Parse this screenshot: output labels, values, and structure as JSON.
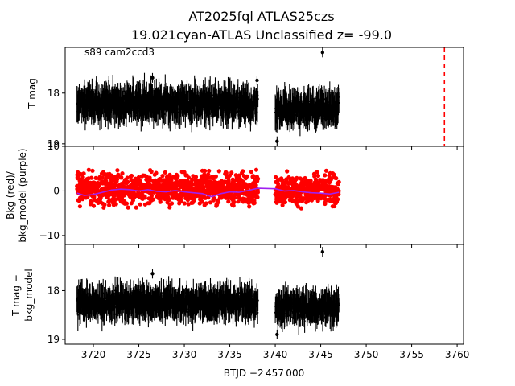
{
  "chart_data": {
    "type": "scatter",
    "title_line1": "AT2025fql  ATLAS25czs",
    "title_line2": "19.021cyan-ATLAS Unclassified z= -99.0",
    "annotation": "s89 cam2ccd3",
    "xlabel": "BTJD −2 457 000",
    "xlim": [
      3716.9,
      3760.7
    ],
    "x_ticks": [
      3720,
      3725,
      3730,
      3735,
      3740,
      3745,
      3750,
      3755,
      3760
    ],
    "x_tick_labels": [
      "3720",
      "3725",
      "3730",
      "3735",
      "3740",
      "3745",
      "3750",
      "3755",
      "3760"
    ],
    "panels": [
      {
        "id": "top",
        "ylabel": "T mag",
        "ylim": [
          19.05,
          17.1
        ],
        "inverted": true,
        "y_ticks": [
          18,
          19
        ],
        "y_tick_labels": [
          "18",
          "19"
        ],
        "series": [
          {
            "color": "#000000",
            "style": "errorbar",
            "segments": [
              {
                "x_start": 3718.2,
                "x_end": 3738.1,
                "center": 18.2,
                "spread": 0.32
              },
              {
                "x_start": 3740.0,
                "x_end": 3747.0,
                "center": 18.3,
                "spread": 0.3
              }
            ],
            "outliers": [
              {
                "x": 3745.2,
                "y": 17.2
              },
              {
                "x": 3726.5,
                "y": 17.7
              },
              {
                "x": 3738.0,
                "y": 17.75
              },
              {
                "x": 3740.2,
                "y": 18.95
              }
            ]
          }
        ],
        "vline": {
          "x": 3758.6,
          "color": "#ff0000",
          "style": "dashed"
        }
      },
      {
        "id": "middle",
        "ylabel_line1": "Bkg (red)/",
        "ylabel_line2": "bkg_model (purple)",
        "ylim": [
          -12,
          10
        ],
        "y_ticks": [
          -10,
          0,
          10
        ],
        "y_tick_labels": [
          "−10",
          "0",
          "10"
        ],
        "series": [
          {
            "name": "Bkg",
            "color": "#ff0000",
            "style": "points",
            "segments": [
              {
                "x_start": 3718.2,
                "x_end": 3738.1,
                "center": 0.5,
                "spread": 5.0
              },
              {
                "x_start": 3740.0,
                "x_end": 3747.0,
                "center": 0.2,
                "spread": 5.0
              }
            ]
          },
          {
            "name": "bkg_model",
            "color": "#a020f0",
            "style": "line",
            "x": [
              3718.2,
              3719.0,
              3720.0,
              3721.0,
              3722.0,
              3723.0,
              3724.0,
              3725.0,
              3726.0,
              3727.0,
              3728.0,
              3729.0,
              3730.0,
              3731.0,
              3732.0,
              3733.0,
              3734.0,
              3735.0,
              3736.0,
              3737.0,
              3738.1,
              3740.0,
              3741.0,
              3742.0,
              3743.0,
              3744.0,
              3745.0,
              3746.0,
              3747.0
            ],
            "y": [
              -0.5,
              -1.0,
              -0.8,
              -0.3,
              0.2,
              0.4,
              0.3,
              0.0,
              0.3,
              -0.1,
              -0.2,
              0.1,
              -0.2,
              -0.4,
              -0.6,
              -1.3,
              -0.6,
              -0.2,
              -0.3,
              0.1,
              0.6,
              0.5,
              0.0,
              0.1,
              -0.2,
              -0.4,
              -0.5,
              -0.7,
              -0.3
            ]
          }
        ]
      },
      {
        "id": "bottom",
        "ylabel_line1": "T mag −",
        "ylabel_line2": "bkg_model",
        "ylim": [
          19.1,
          17.05
        ],
        "inverted": true,
        "y_ticks": [
          18,
          19
        ],
        "y_tick_labels": [
          "18",
          "19"
        ],
        "series": [
          {
            "color": "#000000",
            "style": "errorbar",
            "segments": [
              {
                "x_start": 3718.2,
                "x_end": 3738.1,
                "center": 18.25,
                "spread": 0.3
              },
              {
                "x_start": 3740.0,
                "x_end": 3747.0,
                "center": 18.35,
                "spread": 0.3
              }
            ],
            "outliers": [
              {
                "x": 3745.2,
                "y": 17.2
              },
              {
                "x": 3726.5,
                "y": 17.65
              },
              {
                "x": 3740.2,
                "y": 18.9
              }
            ]
          }
        ]
      }
    ]
  }
}
